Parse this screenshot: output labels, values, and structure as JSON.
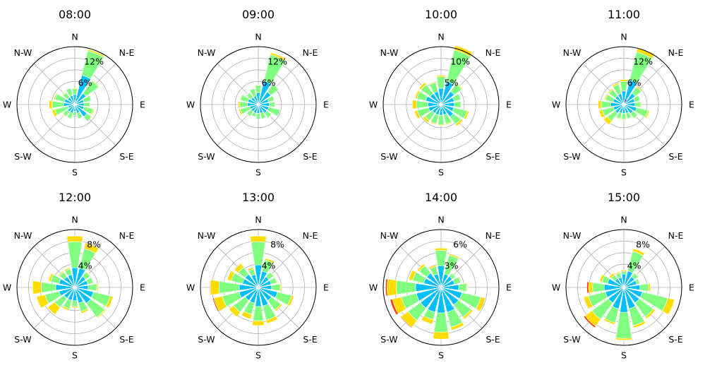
{
  "colors": {
    "speed_bins": [
      "#0000ff",
      "#00bfff",
      "#80ff80",
      "#ffdd00",
      "#ff4000"
    ],
    "grid": "#b0b0b0",
    "frame": "#000000"
  },
  "chart_data": [
    {
      "type": "windrose",
      "title": "08:00",
      "rmax": 15,
      "rticks": [
        6,
        12
      ],
      "rtick_labels": [
        "6%",
        "12%"
      ],
      "directions": [
        "N",
        "N-NE",
        "NE",
        "E-NE",
        "E",
        "E-SE",
        "SE",
        "S-SE",
        "S",
        "S-SW",
        "SW",
        "W-SW",
        "W",
        "W-NW",
        "NW",
        "N-NW"
      ],
      "direction_labels": [
        "N",
        "N-E",
        "E",
        "S-E",
        "S",
        "S-W",
        "W",
        "N-W"
      ],
      "series": [
        {
          "values": [
            0.6,
            0.8,
            0.6,
            0.4,
            0.4,
            0.4,
            0.4,
            0.3,
            0.3,
            0.3,
            0.3,
            0.3,
            0.4,
            0.3,
            0.3,
            0.4
          ]
        },
        {
          "values": [
            2.0,
            7.0,
            3.0,
            2.0,
            2.0,
            2.0,
            3.5,
            2.0,
            1.5,
            2.0,
            2.0,
            1.5,
            2.5,
            2.5,
            2.0,
            2.0
          ]
        },
        {
          "values": [
            1.5,
            6.5,
            4.0,
            2.0,
            1.5,
            2.5,
            1.5,
            1.5,
            1.0,
            1.5,
            1.5,
            3.5,
            3.0,
            2.5,
            1.5,
            2.0
          ]
        },
        {
          "values": [
            0.2,
            0.4,
            0.2,
            0.1,
            0.1,
            0.3,
            0.1,
            0.1,
            0.0,
            0.1,
            0.2,
            0.8,
            0.8,
            0.3,
            0.2,
            0.1
          ]
        }
      ]
    },
    {
      "type": "windrose",
      "title": "09:00",
      "rmax": 15,
      "rticks": [
        6,
        12
      ],
      "rtick_labels": [
        "6%",
        "12%"
      ],
      "directions": [
        "N",
        "N-NE",
        "NE",
        "E-NE",
        "E",
        "E-SE",
        "SE",
        "S-SE",
        "S",
        "S-SW",
        "SW",
        "W-SW",
        "W",
        "W-NW",
        "NW",
        "N-NW"
      ],
      "direction_labels": [
        "N",
        "N-E",
        "E",
        "S-E",
        "S",
        "S-W",
        "W",
        "N-W"
      ],
      "series": [
        {
          "values": [
            0.5,
            0.8,
            0.5,
            0.3,
            0.3,
            0.3,
            0.3,
            0.3,
            0.3,
            0.3,
            0.3,
            0.3,
            0.3,
            0.3,
            0.3,
            0.3
          ]
        },
        {
          "values": [
            2.5,
            5.5,
            3.5,
            2.5,
            2.5,
            2.5,
            2.5,
            2.0,
            2.0,
            2.0,
            2.0,
            2.0,
            2.5,
            2.5,
            2.0,
            2.0
          ]
        },
        {
          "values": [
            2.0,
            7.0,
            2.5,
            1.5,
            1.5,
            3.0,
            1.5,
            1.5,
            1.5,
            1.0,
            1.5,
            2.5,
            2.0,
            2.0,
            1.5,
            2.0
          ]
        },
        {
          "values": [
            0.1,
            0.5,
            0.1,
            0.0,
            0.0,
            0.1,
            0.1,
            0.0,
            0.0,
            0.0,
            0.1,
            0.4,
            0.4,
            0.2,
            0.1,
            0.1
          ]
        }
      ]
    },
    {
      "type": "windrose",
      "title": "10:00",
      "rmax": 12.5,
      "rticks": [
        5,
        10
      ],
      "rtick_labels": [
        "5%",
        "10%"
      ],
      "directions": [
        "N",
        "N-NE",
        "NE",
        "E-NE",
        "E",
        "E-SE",
        "SE",
        "S-SE",
        "S",
        "S-SW",
        "SW",
        "W-SW",
        "W",
        "W-NW",
        "NW",
        "N-NW"
      ],
      "direction_labels": [
        "N",
        "N-E",
        "E",
        "S-E",
        "S",
        "S-W",
        "W",
        "N-W"
      ],
      "series": [
        {
          "values": [
            0.5,
            0.6,
            0.5,
            0.4,
            0.3,
            0.3,
            0.3,
            0.3,
            0.3,
            0.3,
            0.3,
            0.3,
            0.3,
            0.4,
            0.4,
            0.4
          ]
        },
        {
          "values": [
            3.0,
            4.5,
            3.0,
            2.5,
            2.5,
            2.5,
            3.0,
            2.0,
            2.0,
            2.0,
            2.0,
            2.5,
            2.5,
            3.0,
            2.5,
            2.5
          ]
        },
        {
          "values": [
            2.5,
            7.0,
            2.0,
            1.5,
            1.5,
            3.0,
            2.0,
            2.0,
            2.0,
            2.0,
            2.0,
            2.5,
            2.5,
            2.0,
            2.5,
            2.0
          ]
        },
        {
          "values": [
            0.3,
            1.0,
            0.2,
            0.1,
            0.1,
            0.4,
            0.5,
            0.2,
            0.2,
            0.2,
            0.6,
            0.6,
            0.9,
            0.4,
            0.5,
            0.2
          ]
        }
      ]
    },
    {
      "type": "windrose",
      "title": "11:00",
      "rmax": 15,
      "rticks": [
        6,
        12
      ],
      "rtick_labels": [
        "6%",
        "12%"
      ],
      "directions": [
        "N",
        "N-NE",
        "NE",
        "E-NE",
        "E",
        "E-SE",
        "SE",
        "S-SE",
        "S",
        "S-SW",
        "SW",
        "W-SW",
        "W",
        "W-NW",
        "NW",
        "N-NW"
      ],
      "direction_labels": [
        "N",
        "N-E",
        "E",
        "S-E",
        "S",
        "S-W",
        "W",
        "N-W"
      ],
      "series": [
        {
          "values": [
            0.5,
            1.5,
            0.6,
            0.4,
            0.4,
            0.4,
            0.4,
            0.3,
            0.3,
            0.3,
            0.3,
            0.3,
            0.4,
            0.4,
            0.3,
            0.4
          ]
        },
        {
          "values": [
            3.0,
            5.0,
            3.0,
            2.5,
            2.5,
            3.0,
            2.5,
            2.0,
            2.0,
            2.0,
            2.5,
            2.5,
            3.0,
            2.5,
            2.5,
            2.5
          ]
        },
        {
          "values": [
            2.5,
            7.5,
            2.0,
            1.5,
            1.5,
            3.0,
            1.5,
            1.5,
            1.5,
            1.5,
            2.5,
            3.0,
            2.5,
            2.0,
            2.0,
            2.5
          ]
        },
        {
          "values": [
            0.5,
            1.0,
            0.3,
            0.1,
            0.2,
            0.4,
            0.2,
            0.1,
            0.2,
            0.2,
            1.2,
            0.8,
            0.8,
            0.3,
            0.3,
            0.4
          ]
        }
      ]
    },
    {
      "type": "windrose",
      "title": "12:00",
      "rmax": 10,
      "rticks": [
        4,
        8
      ],
      "rtick_labels": [
        "4%",
        "8%"
      ],
      "directions": [
        "N",
        "N-NE",
        "NE",
        "E-NE",
        "E",
        "E-SE",
        "SE",
        "S-SE",
        "S",
        "S-SW",
        "SW",
        "W-SW",
        "W",
        "W-NW",
        "NW",
        "N-NW"
      ],
      "direction_labels": [
        "N",
        "N-E",
        "E",
        "S-E",
        "S",
        "S-W",
        "W",
        "N-W"
      ],
      "series": [
        {
          "values": [
            0.4,
            0.4,
            0.3,
            0.3,
            0.3,
            0.3,
            0.4,
            0.3,
            0.3,
            0.3,
            0.3,
            0.3,
            0.3,
            0.3,
            0.3,
            0.3
          ]
        },
        {
          "values": [
            3.0,
            3.0,
            2.0,
            2.0,
            2.0,
            3.0,
            3.0,
            2.5,
            2.0,
            2.0,
            2.0,
            2.5,
            3.0,
            2.5,
            2.0,
            2.0
          ]
        },
        {
          "values": [
            4.5,
            3.5,
            1.0,
            1.0,
            1.5,
            3.0,
            3.0,
            1.5,
            1.0,
            1.5,
            2.0,
            2.5,
            2.5,
            1.5,
            1.0,
            1.0
          ]
        },
        {
          "values": [
            1.0,
            1.0,
            0.1,
            0.0,
            0.2,
            0.5,
            0.2,
            0.3,
            0.2,
            0.3,
            1.5,
            1.5,
            1.5,
            0.4,
            0.2,
            0.2
          ]
        },
        {
          "values": [
            0.0,
            0.0,
            0.0,
            0.0,
            0.0,
            0.0,
            0.0,
            0.0,
            0.0,
            0.0,
            0.0,
            0.0,
            0.0,
            0.0,
            0.0,
            0.0
          ]
        }
      ]
    },
    {
      "type": "windrose",
      "title": "13:00",
      "rmax": 10,
      "rticks": [
        4,
        8
      ],
      "rtick_labels": [
        "4%",
        "8%"
      ],
      "directions": [
        "N",
        "N-NE",
        "NE",
        "E-NE",
        "E",
        "E-SE",
        "SE",
        "S-SE",
        "S",
        "S-SW",
        "SW",
        "W-SW",
        "W",
        "W-NW",
        "NW",
        "N-NW"
      ],
      "direction_labels": [
        "N",
        "N-E",
        "E",
        "S-E",
        "S",
        "S-W",
        "W",
        "N-W"
      ],
      "series": [
        {
          "values": [
            0.4,
            0.4,
            0.3,
            0.3,
            0.3,
            0.4,
            0.3,
            0.3,
            0.3,
            0.3,
            0.3,
            0.4,
            0.3,
            0.3,
            0.3,
            0.3
          ]
        },
        {
          "values": [
            3.5,
            2.5,
            2.0,
            2.0,
            2.0,
            3.0,
            2.5,
            3.0,
            3.0,
            2.5,
            2.5,
            3.0,
            3.0,
            2.5,
            2.5,
            2.0
          ]
        },
        {
          "values": [
            4.0,
            2.0,
            1.0,
            1.0,
            1.5,
            2.5,
            2.0,
            2.5,
            2.5,
            2.0,
            2.5,
            3.0,
            3.5,
            2.0,
            1.5,
            1.0
          ]
        },
        {
          "values": [
            1.0,
            0.3,
            0.1,
            0.1,
            0.2,
            0.4,
            0.3,
            0.6,
            0.8,
            0.8,
            1.0,
            1.5,
            1.5,
            0.7,
            0.8,
            0.3
          ]
        },
        {
          "values": [
            0.0,
            0.0,
            0.0,
            0.0,
            0.0,
            0.0,
            0.0,
            0.0,
            0.0,
            0.0,
            0.0,
            0.2,
            0.1,
            0.0,
            0.1,
            0.0
          ]
        }
      ]
    },
    {
      "type": "windrose",
      "title": "14:00",
      "rmax": 7.5,
      "rticks": [
        3,
        6
      ],
      "rtick_labels": [
        "3%",
        "6%"
      ],
      "directions": [
        "N",
        "N-NE",
        "NE",
        "E-NE",
        "E",
        "E-SE",
        "SE",
        "S-SE",
        "S",
        "S-SW",
        "SW",
        "W-SW",
        "W",
        "W-NW",
        "NW",
        "N-NW"
      ],
      "direction_labels": [
        "N",
        "N-E",
        "E",
        "S-E",
        "S",
        "S-W",
        "W",
        "N-W"
      ],
      "series": [
        {
          "values": [
            0.3,
            0.3,
            0.3,
            0.3,
            0.3,
            0.3,
            0.3,
            0.3,
            0.3,
            0.3,
            0.3,
            0.3,
            0.3,
            0.3,
            0.3,
            0.3
          ]
        },
        {
          "values": [
            2.5,
            1.5,
            1.5,
            1.5,
            2.0,
            2.5,
            2.5,
            3.0,
            3.0,
            3.0,
            3.0,
            3.0,
            3.0,
            2.0,
            2.0,
            1.5
          ]
        },
        {
          "values": [
            2.0,
            2.5,
            0.5,
            0.8,
            1.0,
            2.5,
            2.0,
            2.0,
            2.5,
            1.0,
            2.0,
            2.0,
            2.5,
            1.5,
            1.2,
            1.0
          ]
        },
        {
          "values": [
            0.3,
            0.2,
            0.0,
            0.1,
            0.1,
            0.6,
            0.3,
            0.4,
            0.9,
            0.6,
            1.1,
            1.2,
            1.2,
            0.5,
            0.3,
            0.2
          ]
        },
        {
          "values": [
            0.0,
            0.0,
            0.0,
            0.0,
            0.0,
            0.0,
            0.0,
            0.0,
            0.0,
            0.0,
            0.1,
            0.3,
            0.2,
            0.0,
            0.0,
            0.0
          ]
        }
      ]
    },
    {
      "type": "windrose",
      "title": "15:00",
      "rmax": 10,
      "rticks": [
        4,
        8
      ],
      "rtick_labels": [
        "4%",
        "8%"
      ],
      "directions": [
        "N",
        "N-NE",
        "NE",
        "E-NE",
        "E",
        "E-SE",
        "SE",
        "S-SE",
        "S",
        "S-SW",
        "SW",
        "W-SW",
        "W",
        "W-NW",
        "NW",
        "N-NW"
      ],
      "direction_labels": [
        "N",
        "N-E",
        "E",
        "S-E",
        "S",
        "S-W",
        "W",
        "N-W"
      ],
      "series": [
        {
          "values": [
            0.3,
            0.4,
            0.3,
            0.3,
            0.3,
            0.3,
            0.3,
            0.3,
            0.3,
            0.3,
            0.3,
            0.3,
            0.4,
            0.4,
            0.4,
            0.3
          ]
        },
        {
          "values": [
            2.0,
            2.5,
            2.0,
            2.0,
            2.5,
            3.0,
            3.0,
            3.5,
            4.0,
            3.5,
            3.0,
            3.0,
            3.0,
            2.5,
            1.5,
            1.5
          ]
        },
        {
          "values": [
            0.5,
            3.5,
            0.8,
            0.5,
            1.5,
            4.5,
            3.0,
            3.0,
            4.5,
            2.5,
            3.5,
            3.0,
            2.0,
            1.0,
            0.8,
            0.8
          ]
        },
        {
          "values": [
            0.2,
            0.5,
            0.1,
            0.1,
            0.3,
            1.2,
            0.4,
            0.4,
            0.3,
            0.3,
            1.5,
            0.8,
            0.7,
            0.4,
            0.4,
            0.2
          ]
        },
        {
          "values": [
            0.0,
            0.0,
            0.0,
            0.0,
            0.0,
            0.0,
            0.0,
            0.0,
            0.0,
            0.0,
            0.3,
            0.1,
            0.3,
            0.0,
            0.0,
            0.0
          ]
        }
      ]
    }
  ]
}
